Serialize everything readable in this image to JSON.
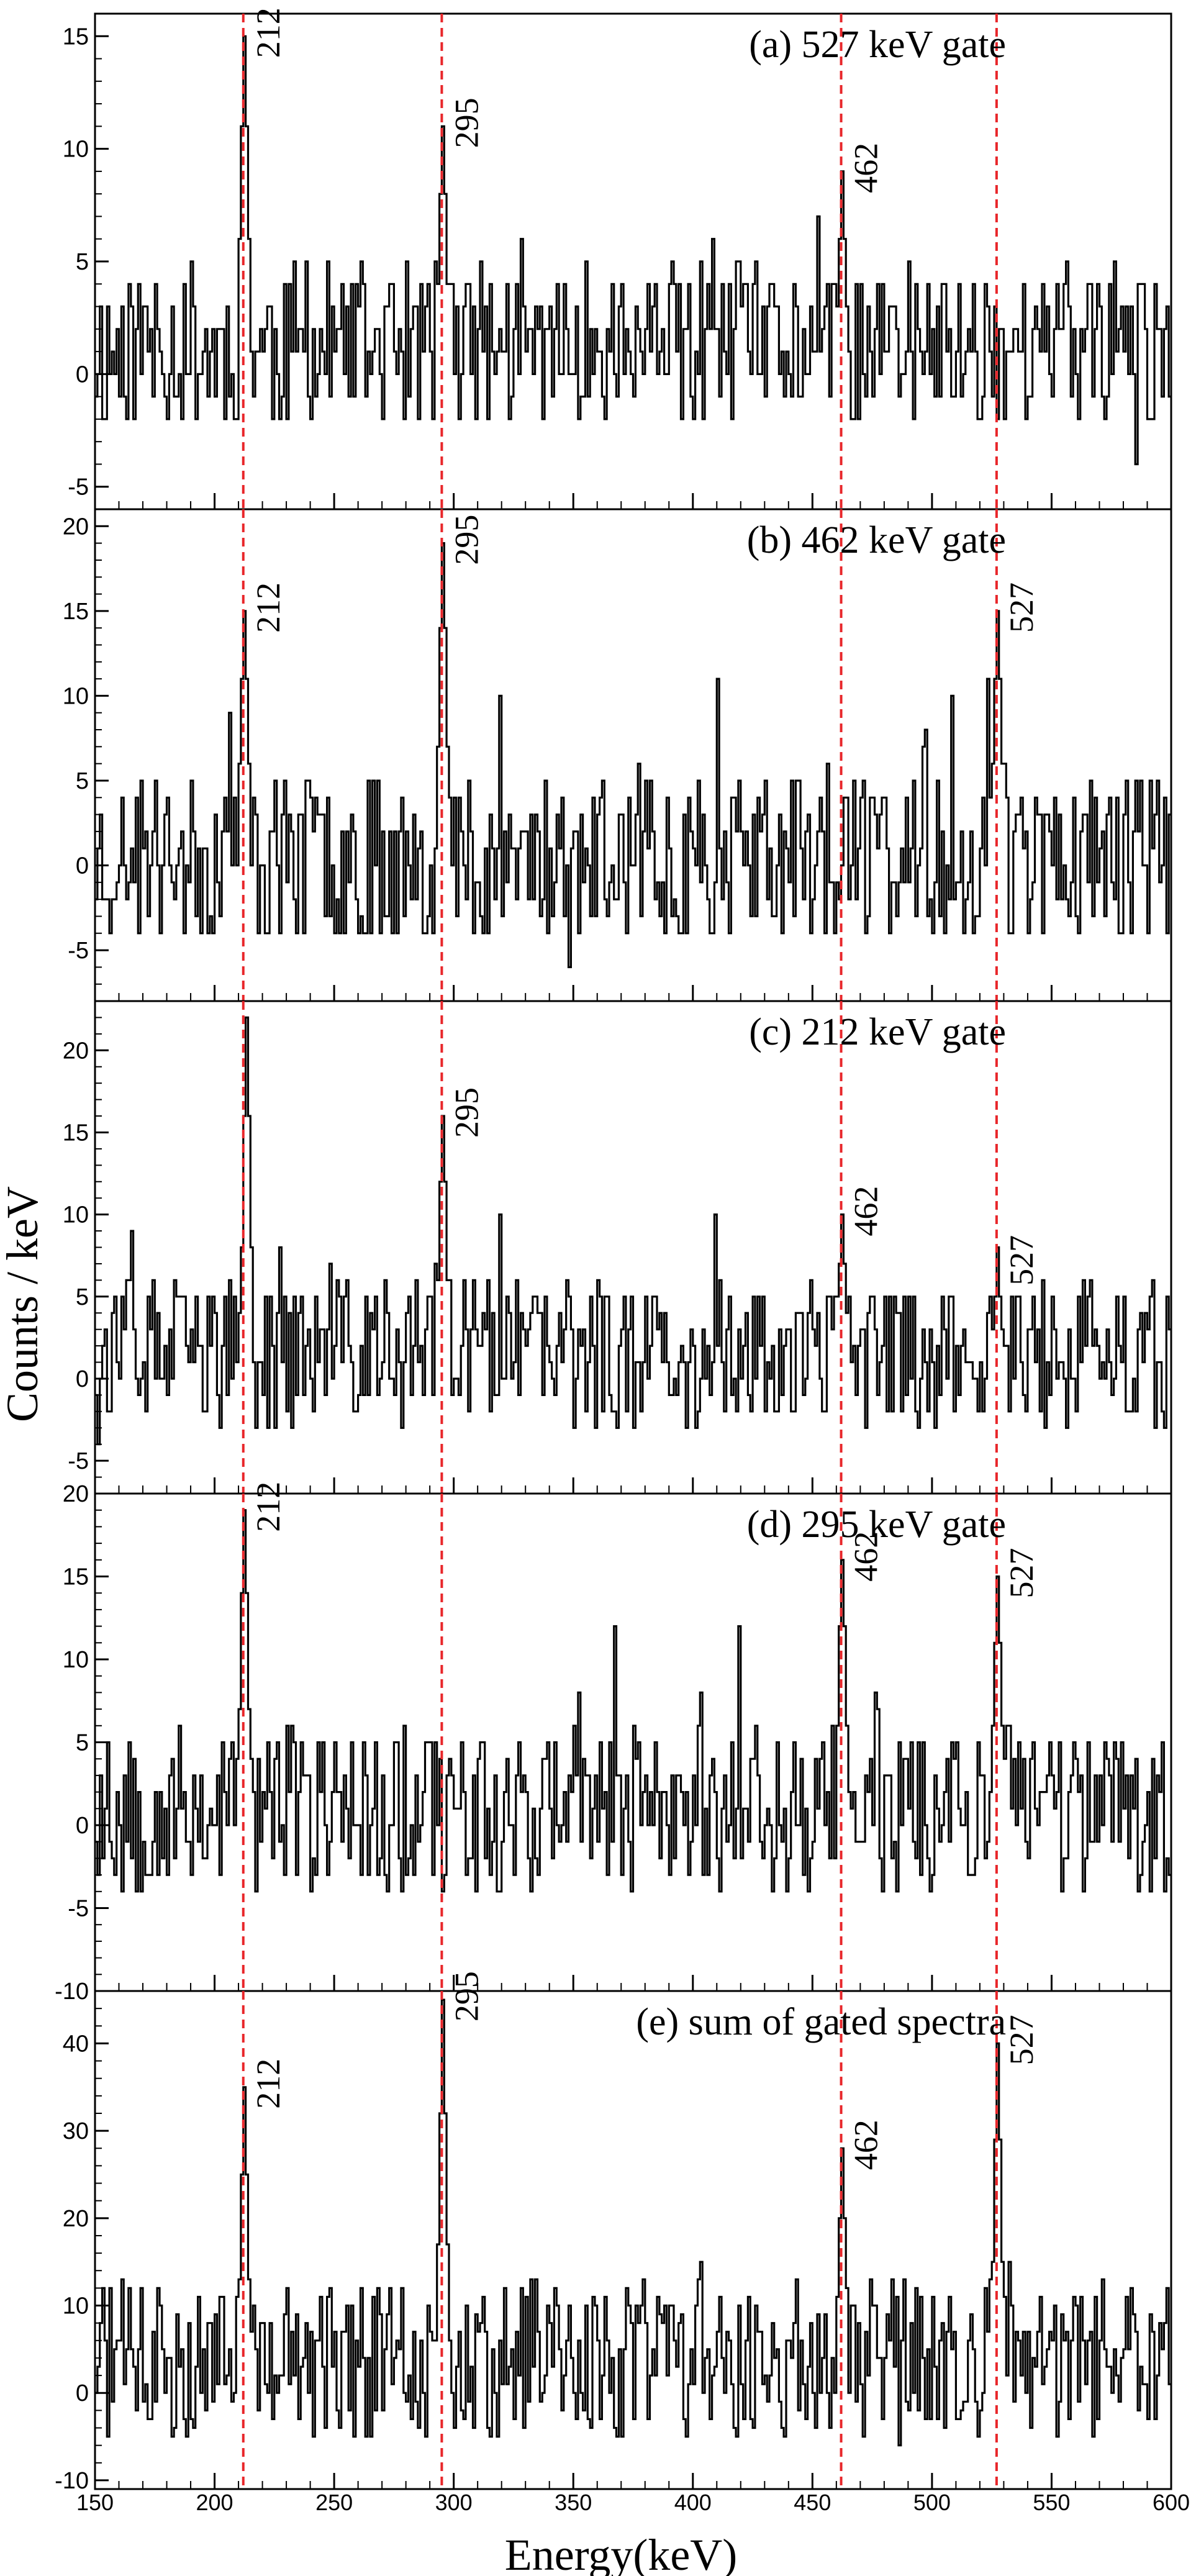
{
  "chart_data": {
    "type": "histogram-stack",
    "ylabel": "Counts / keV",
    "xlabel": "Energy(keV)",
    "xlim": [
      150,
      600
    ],
    "x_ticks": [
      150,
      200,
      250,
      300,
      350,
      400,
      450,
      500,
      550,
      600
    ],
    "bin_width_keV": 1,
    "gate_lines_keV": [
      212,
      295,
      462,
      527
    ],
    "gate_line_color": "#e8262a",
    "histogram_color": "#000000",
    "panels": [
      {
        "title": "(a) 527 keV gate",
        "ylim": [
          -6,
          16
        ],
        "y_ticks": [
          -5,
          0,
          5,
          10,
          15
        ],
        "peaks": [
          {
            "energy": 212,
            "label": "212",
            "counts": 15
          },
          {
            "energy": 295,
            "label": "295",
            "counts": 11
          },
          {
            "energy": 462,
            "label": "462",
            "counts": 9
          }
        ],
        "background": {
          "mean": 1.2,
          "amp": 3.5,
          "seed": 11
        }
      },
      {
        "title": "(b) 462 keV gate",
        "ylim": [
          -8,
          21
        ],
        "y_ticks": [
          -5,
          0,
          5,
          10,
          15,
          20
        ],
        "peaks": [
          {
            "energy": 212,
            "label": "212",
            "counts": 15
          },
          {
            "energy": 295,
            "label": "295",
            "counts": 19
          },
          {
            "energy": 527,
            "label": "527",
            "counts": 15
          }
        ],
        "background": {
          "mean": 0.5,
          "amp": 5.0,
          "seed": 23
        }
      },
      {
        "title": "(c) 212 keV gate",
        "ylim": [
          -7,
          23
        ],
        "y_ticks": [
          -5,
          0,
          5,
          10,
          15,
          20
        ],
        "peaks": [
          {
            "energy": 213,
            "label": "",
            "counts": 22
          },
          {
            "energy": 295,
            "label": "295",
            "counts": 16
          },
          {
            "energy": 462,
            "label": "462",
            "counts": 10
          },
          {
            "energy": 527,
            "label": "527",
            "counts": 7
          }
        ],
        "background": {
          "mean": 1.5,
          "amp": 4.5,
          "seed": 37
        }
      },
      {
        "title": "(d) 295 keV gate",
        "ylim": [
          -10,
          20
        ],
        "y_ticks": [
          -10,
          -5,
          0,
          5,
          10,
          15,
          20
        ],
        "peaks": [
          {
            "energy": 212,
            "label": "212",
            "counts": 19
          },
          {
            "energy": 462,
            "label": "462",
            "counts": 16
          },
          {
            "energy": 527,
            "label": "527",
            "counts": 15
          }
        ],
        "background": {
          "mean": 1.0,
          "amp": 5.0,
          "seed": 53
        }
      },
      {
        "title": "(e) sum of gated spectra",
        "ylim": [
          -11,
          46
        ],
        "y_ticks": [
          -10,
          0,
          10,
          20,
          30,
          40
        ],
        "peaks": [
          {
            "energy": 212,
            "label": "212",
            "counts": 35
          },
          {
            "energy": 295,
            "label": "295",
            "counts": 45
          },
          {
            "energy": 462,
            "label": "462",
            "counts": 28
          },
          {
            "energy": 527,
            "label": "527",
            "counts": 40
          }
        ],
        "background": {
          "mean": 4.0,
          "amp": 9.0,
          "seed": 71
        }
      }
    ]
  }
}
